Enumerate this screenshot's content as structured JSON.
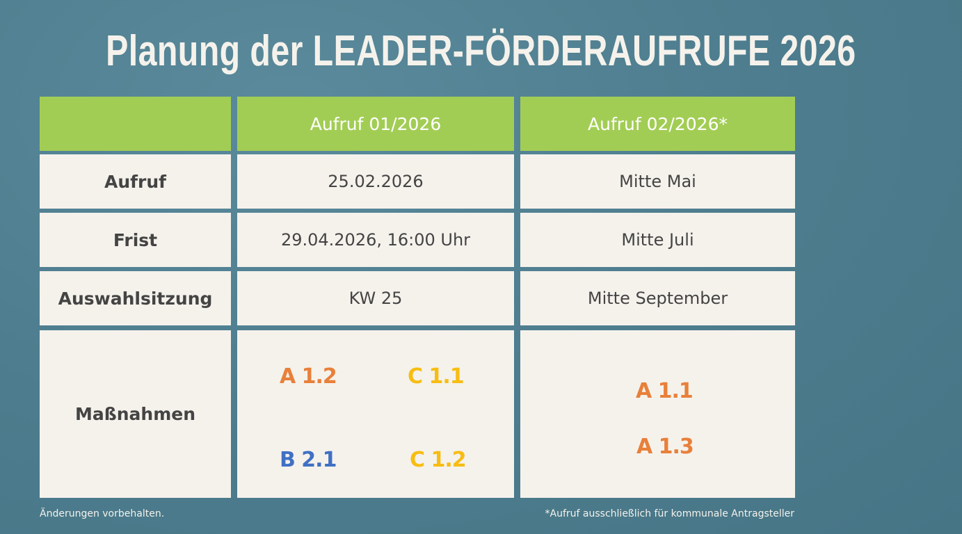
{
  "title": "Planung der LEADER-FÖRDERAUFRUFE 2026",
  "colors": {
    "background": "#4e7f90",
    "header": "#a2cd55",
    "cell": "#f5f2ec",
    "orange": "#e8803a",
    "yellow": "#f7bd12",
    "blue": "#4070c4"
  },
  "table": {
    "columns": [
      "",
      "Aufruf 01/2026",
      "Aufruf 02/2026*"
    ],
    "rows": [
      {
        "label": "Aufruf",
        "call1": "25.02.2026",
        "call2": "Mitte Mai"
      },
      {
        "label": "Frist",
        "call1": "29.04.2026, 16:00 Uhr",
        "call2": "Mitte Juli"
      },
      {
        "label": "Auswahlsitzung",
        "call1": "KW 25",
        "call2": "Mitte September"
      },
      {
        "label": "Maßnahmen",
        "call1": [
          {
            "code": "A 1.2",
            "color": "#e8803a"
          },
          {
            "code": "C 1.1",
            "color": "#f7bd12"
          },
          {
            "code": "B 2.1",
            "color": "#4070c4"
          },
          {
            "code": "C 1.2",
            "color": "#f7bd12"
          }
        ],
        "call2": [
          {
            "code": "A 1.1",
            "color": "#e8803a"
          },
          {
            "code": "A 1.3",
            "color": "#e8803a"
          }
        ]
      }
    ]
  },
  "footnotes": {
    "left": "Änderungen vorbehalten.",
    "right": "*Aufruf ausschließlich für kommunale Antragsteller"
  }
}
